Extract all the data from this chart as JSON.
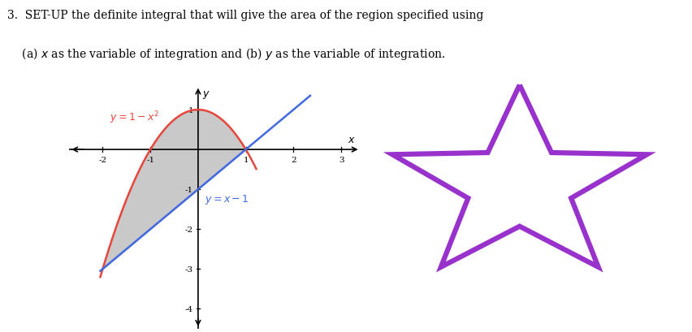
{
  "parabola_color": "#e8453c",
  "line_color": "#4169e1",
  "fill_color": "#c0c0c0",
  "fill_alpha": 0.85,
  "star_color": "#9932cc",
  "star_linewidth": 4.5,
  "axis_xlim": [
    -2.7,
    3.4
  ],
  "axis_ylim": [
    -4.5,
    1.6
  ],
  "x_ticks": [
    -2,
    -1,
    1,
    2,
    3
  ],
  "y_ticks": [
    -4,
    -3,
    -2,
    -1,
    1
  ],
  "label_parabola": "$y = 1 - x^2$",
  "label_line": "$y = x - 1$",
  "x_int1": -2.0,
  "x_int2": 1.0,
  "header1": "3.  SET-UP the definite integral that will give the area of the region specified using",
  "header2": "    (a) $x$ as the variable of integration and (b) $y$ as the variable of integration."
}
